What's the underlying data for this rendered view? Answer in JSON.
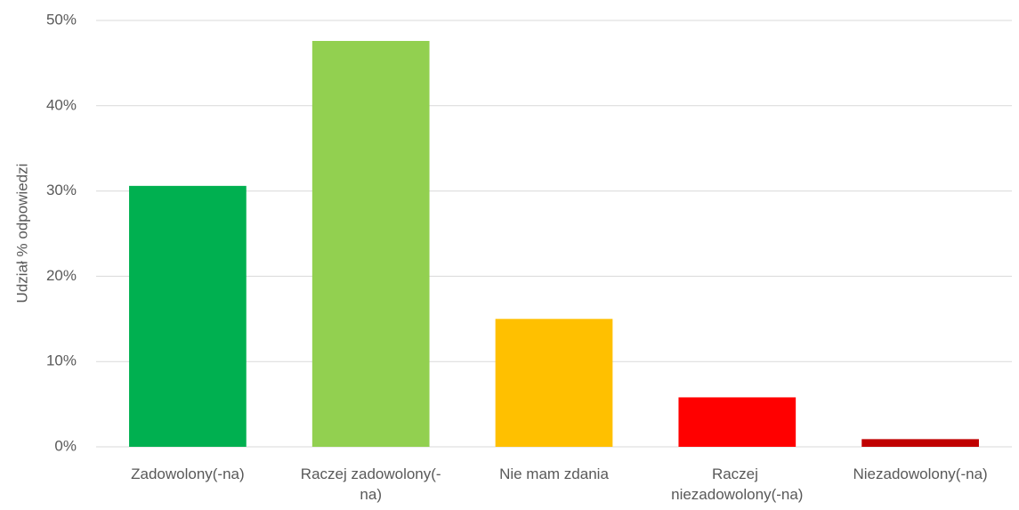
{
  "chart_data": {
    "type": "bar",
    "ylabel": "Udział % odpowiedzi",
    "categories": [
      "Zadowolony(-na)",
      "Raczej zadowolony(-na)",
      "Nie mam zdania",
      "Raczej niezadowolony(-na)",
      "Niezadowolony(-na)"
    ],
    "values": [
      30.6,
      47.6,
      15.0,
      5.8,
      0.9
    ],
    "colors": [
      "#00b050",
      "#92d050",
      "#ffc000",
      "#ff0000",
      "#c00000"
    ],
    "ylim": [
      0,
      50
    ],
    "yticks": [
      {
        "value": 0,
        "label": "0%"
      },
      {
        "value": 10,
        "label": "10%"
      },
      {
        "value": 20,
        "label": "20%"
      },
      {
        "value": 30,
        "label": "30%"
      },
      {
        "value": 40,
        "label": "40%"
      },
      {
        "value": 50,
        "label": "50%"
      }
    ],
    "grid": true
  }
}
